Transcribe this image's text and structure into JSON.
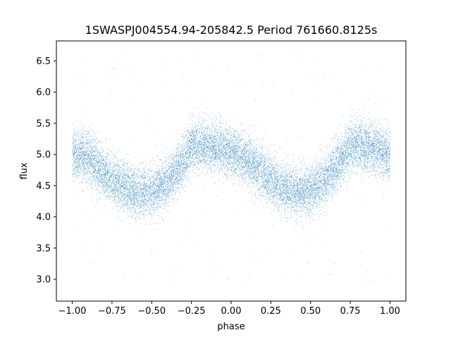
{
  "chart_data": {
    "type": "scatter",
    "title": "1SWASPJ004554.94-205842.5 Period 761660.8125s",
    "xlabel": "phase",
    "ylabel": "flux",
    "xlim": [
      -1.1,
      1.1
    ],
    "ylim": [
      2.65,
      6.82
    ],
    "x_ticks": [
      -1.0,
      -0.75,
      -0.5,
      -0.25,
      0.0,
      0.25,
      0.5,
      0.75,
      1.0
    ],
    "x_tick_labels": [
      "−1.00",
      "−0.75",
      "−0.50",
      "−0.25",
      "0.00",
      "0.25",
      "0.50",
      "0.75",
      "1.00"
    ],
    "y_ticks": [
      3.0,
      3.5,
      4.0,
      4.5,
      5.0,
      5.5,
      6.0,
      6.5
    ],
    "y_tick_labels": [
      "3.0",
      "3.5",
      "4.0",
      "4.5",
      "5.0",
      "5.5",
      "6.0",
      "6.5"
    ],
    "grid": false,
    "point_color": "#1f77b4",
    "phase_range": [
      -1.0,
      1.0
    ],
    "trend_phase": [
      -1.0,
      -0.9,
      -0.8,
      -0.7,
      -0.6,
      -0.5,
      -0.4,
      -0.3,
      -0.25,
      -0.2,
      -0.1,
      0.0,
      0.1,
      0.2,
      0.3,
      0.4,
      0.5,
      0.6,
      0.7,
      0.75,
      0.8,
      0.9,
      1.0
    ],
    "trend_flux": [
      5.0,
      4.95,
      4.7,
      4.5,
      4.4,
      4.4,
      4.55,
      4.9,
      5.15,
      5.15,
      5.1,
      5.05,
      4.9,
      4.7,
      4.5,
      4.4,
      4.42,
      4.6,
      4.95,
      5.15,
      5.15,
      5.1,
      5.0
    ],
    "scatter_sigma": 0.2,
    "n_points": 16000
  }
}
